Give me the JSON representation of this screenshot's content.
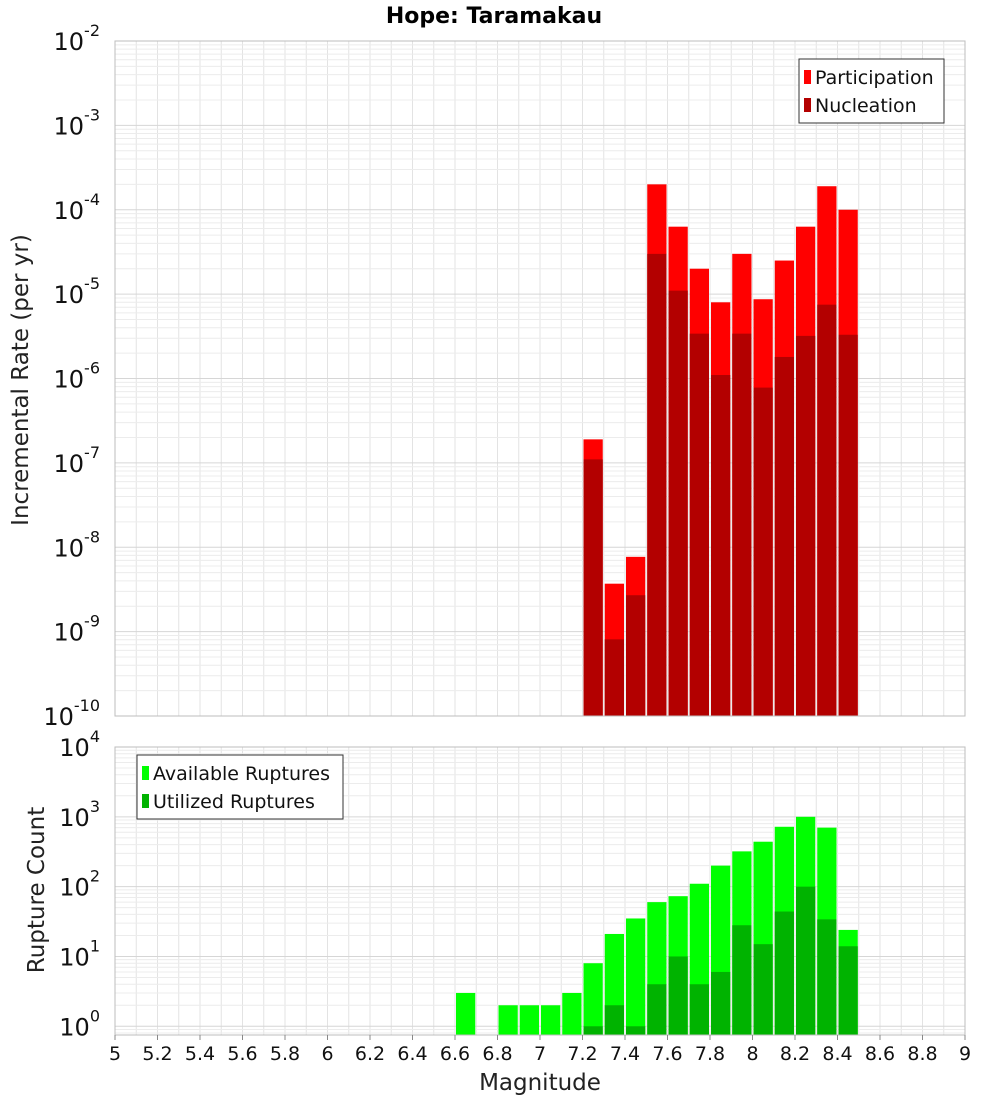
{
  "chart_data": [
    {
      "type": "bar",
      "title": "Hope: Taramakau",
      "ylabel": "Incremental Rate (per yr)",
      "xlabel": "",
      "yscale": "log",
      "ylim": [
        1e-10,
        0.01
      ],
      "xlim": [
        5,
        9
      ],
      "grid": true,
      "legend_position": "top-right",
      "ytick_labels": [
        {
          "base": "10",
          "exp": "-10"
        },
        {
          "base": "10",
          "exp": "-9"
        },
        {
          "base": "10",
          "exp": "-8"
        },
        {
          "base": "10",
          "exp": "-7"
        },
        {
          "base": "10",
          "exp": "-6"
        },
        {
          "base": "10",
          "exp": "-5"
        },
        {
          "base": "10",
          "exp": "-4"
        },
        {
          "base": "10",
          "exp": "-3"
        },
        {
          "base": "10",
          "exp": "-2"
        }
      ],
      "x": [
        7.25,
        7.35,
        7.45,
        7.55,
        7.65,
        7.75,
        7.85,
        7.95,
        8.05,
        8.15,
        8.25,
        8.35,
        8.45
      ],
      "series": [
        {
          "name": "Participation",
          "color": "#ff0000",
          "values": [
            1.9e-07,
            3.7e-09,
            7.7e-09,
            0.0002,
            6.3e-05,
            2e-05,
            8e-06,
            3e-05,
            8.7e-06,
            2.5e-05,
            6.3e-05,
            0.00019,
            0.0001
          ]
        },
        {
          "name": "Nucleation",
          "color": "#b30000",
          "values": [
            1.1e-07,
            8.1e-10,
            2.7e-09,
            3e-05,
            1.1e-05,
            3.4e-06,
            1.1e-06,
            3.4e-06,
            7.8e-07,
            1.8e-06,
            3.2e-06,
            7.5e-06,
            3.3e-06
          ]
        }
      ]
    },
    {
      "type": "bar",
      "title": "",
      "ylabel": "Rupture Count",
      "xlabel": "Magnitude",
      "yscale": "log",
      "ylim": [
        0.75,
        10000
      ],
      "xlim": [
        5,
        9
      ],
      "grid": true,
      "legend_position": "top-left",
      "xtick_labels": [
        "5",
        "5.2",
        "5.4",
        "5.6",
        "5.8",
        "6",
        "6.2",
        "6.4",
        "6.6",
        "6.8",
        "7",
        "7.2",
        "7.4",
        "7.6",
        "7.8",
        "8",
        "8.2",
        "8.4",
        "8.6",
        "8.8",
        "9"
      ],
      "ytick_labels": [
        {
          "base": "10",
          "exp": "0"
        },
        {
          "base": "10",
          "exp": "1"
        },
        {
          "base": "10",
          "exp": "2"
        },
        {
          "base": "10",
          "exp": "3"
        },
        {
          "base": "10",
          "exp": "4"
        }
      ],
      "x": [
        6.65,
        6.85,
        6.95,
        7.05,
        7.15,
        7.25,
        7.35,
        7.45,
        7.55,
        7.65,
        7.75,
        7.85,
        7.95,
        8.05,
        8.15,
        8.25,
        8.35,
        8.45
      ],
      "series": [
        {
          "name": "Available Ruptures",
          "color": "#00ff00",
          "values": [
            3,
            2,
            2,
            2,
            3,
            8,
            21,
            35,
            60,
            73,
            110,
            200,
            320,
            440,
            720,
            1000,
            700,
            24
          ]
        },
        {
          "name": "Utilized Ruptures",
          "color": "#00b300",
          "values": [
            null,
            null,
            null,
            null,
            null,
            1,
            2,
            1,
            4,
            10,
            4,
            6,
            28,
            15,
            44,
            100,
            34,
            14
          ]
        }
      ]
    }
  ]
}
